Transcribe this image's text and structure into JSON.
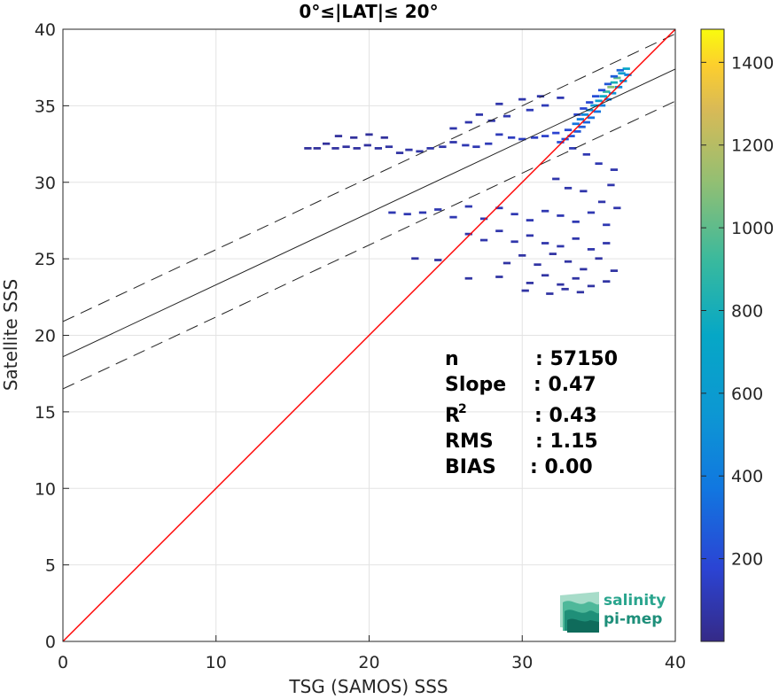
{
  "chart_data": {
    "type": "heatmap",
    "title": "0°≤|LAT|≤ 20°",
    "xlabel": "TSG (SAMOS) SSS",
    "ylabel": "Satellite SSS",
    "xlim": [
      0,
      40
    ],
    "ylim": [
      0,
      40
    ],
    "xticks": [
      "0",
      "10",
      "20",
      "30",
      "40"
    ],
    "yticks": [
      "0",
      "5",
      "10",
      "15",
      "20",
      "25",
      "30",
      "35",
      "40"
    ],
    "grid": true,
    "colorbar": {
      "range": [
        0,
        1480
      ],
      "ticks": [
        "200",
        "400",
        "600",
        "800",
        "1000",
        "1200",
        "1400"
      ]
    },
    "fit_line": {
      "intercept": 18.6,
      "slope": 0.47
    },
    "upper_bound": {
      "intercept": 20.9,
      "slope": 0.47
    },
    "lower_bound": {
      "intercept": 16.5,
      "slope": 0.47
    },
    "identity_line": {
      "color": "#ff0000"
    },
    "stats": [
      {
        "label": "n",
        "value": ": 57150"
      },
      {
        "label": "Slope",
        "value": ": 0.47"
      },
      {
        "label": "R",
        "sup": "2",
        "value": ": 0.43"
      },
      {
        "label": "RMS",
        "value": ": 1.15"
      },
      {
        "label": "BIAS",
        "value": ": 0.00"
      }
    ],
    "density_points": [
      [
        36.8,
        37.4,
        600
      ],
      [
        36.5,
        37.1,
        500
      ],
      [
        36.2,
        36.8,
        900
      ],
      [
        36.0,
        36.5,
        700
      ],
      [
        35.8,
        36.2,
        1000
      ],
      [
        35.5,
        35.9,
        800
      ],
      [
        35.3,
        35.6,
        600
      ],
      [
        35.0,
        35.3,
        500
      ],
      [
        34.7,
        35.0,
        450
      ],
      [
        34.4,
        34.7,
        400
      ],
      [
        34.1,
        34.4,
        350
      ],
      [
        33.8,
        34.1,
        300
      ],
      [
        33.5,
        33.8,
        250
      ],
      [
        36.9,
        37.0,
        300
      ],
      [
        36.6,
        36.6,
        400
      ],
      [
        36.3,
        36.2,
        350
      ],
      [
        35.9,
        35.8,
        400
      ],
      [
        35.6,
        35.4,
        300
      ],
      [
        35.2,
        35.0,
        300
      ],
      [
        34.9,
        34.6,
        250
      ],
      [
        34.5,
        34.2,
        250
      ],
      [
        34.2,
        33.9,
        200
      ],
      [
        33.9,
        33.6,
        180
      ],
      [
        33.6,
        33.3,
        160
      ],
      [
        33.2,
        33.0,
        150
      ],
      [
        32.8,
        32.8,
        140
      ],
      [
        32.5,
        32.6,
        130
      ],
      [
        36.4,
        37.3,
        200
      ],
      [
        36.0,
        36.9,
        180
      ],
      [
        35.6,
        36.4,
        160
      ],
      [
        35.2,
        36.0,
        140
      ],
      [
        34.8,
        35.6,
        130
      ],
      [
        34.4,
        35.2,
        120
      ],
      [
        34.0,
        34.8,
        110
      ],
      [
        33.6,
        34.4,
        100
      ],
      [
        33.0,
        33.4,
        120
      ],
      [
        32.2,
        33.2,
        100
      ],
      [
        31.5,
        33.0,
        90
      ],
      [
        30.8,
        32.9,
        80
      ],
      [
        30.0,
        32.8,
        80
      ],
      [
        29.3,
        32.9,
        70
      ],
      [
        28.5,
        33.1,
        60
      ],
      [
        27.8,
        32.5,
        60
      ],
      [
        27.0,
        32.3,
        50
      ],
      [
        26.3,
        32.4,
        50
      ],
      [
        25.5,
        32.6,
        40
      ],
      [
        24.8,
        32.3,
        40
      ],
      [
        24.0,
        32.2,
        40
      ],
      [
        23.3,
        32.0,
        35
      ],
      [
        22.6,
        32.1,
        35
      ],
      [
        22.0,
        31.9,
        30
      ],
      [
        21.3,
        32.3,
        30
      ],
      [
        20.6,
        32.2,
        30
      ],
      [
        19.9,
        32.4,
        25
      ],
      [
        19.2,
        32.2,
        25
      ],
      [
        18.5,
        32.3,
        25
      ],
      [
        17.8,
        32.2,
        25
      ],
      [
        17.2,
        32.5,
        20
      ],
      [
        16.6,
        32.2,
        20
      ],
      [
        16.0,
        32.2,
        20
      ],
      [
        18.0,
        33.0,
        20
      ],
      [
        19.0,
        32.9,
        20
      ],
      [
        20.0,
        33.1,
        20
      ],
      [
        21.0,
        32.9,
        20
      ],
      [
        25.5,
        33.5,
        40
      ],
      [
        26.5,
        33.9,
        40
      ],
      [
        27.2,
        34.4,
        40
      ],
      [
        28.0,
        34.0,
        40
      ],
      [
        29.0,
        34.3,
        50
      ],
      [
        30.5,
        34.7,
        60
      ],
      [
        31.5,
        35.0,
        60
      ],
      [
        28.5,
        35.1,
        40
      ],
      [
        30.0,
        35.4,
        40
      ],
      [
        31.2,
        35.6,
        40
      ],
      [
        32.5,
        35.5,
        50
      ],
      [
        33.3,
        32.2,
        60
      ],
      [
        34.2,
        31.8,
        50
      ],
      [
        35.0,
        31.2,
        50
      ],
      [
        36.0,
        30.8,
        40
      ],
      [
        35.8,
        29.8,
        40
      ],
      [
        32.2,
        30.2,
        40
      ],
      [
        33.0,
        29.6,
        40
      ],
      [
        34.0,
        29.4,
        40
      ],
      [
        35.2,
        28.7,
        40
      ],
      [
        36.2,
        28.3,
        40
      ],
      [
        21.5,
        28.0,
        50
      ],
      [
        22.5,
        27.9,
        50
      ],
      [
        23.5,
        28.0,
        50
      ],
      [
        24.5,
        28.2,
        50
      ],
      [
        25.5,
        27.7,
        50
      ],
      [
        26.5,
        28.4,
        50
      ],
      [
        27.5,
        27.6,
        50
      ],
      [
        28.5,
        28.3,
        50
      ],
      [
        29.5,
        27.9,
        50
      ],
      [
        30.5,
        27.5,
        50
      ],
      [
        31.5,
        28.1,
        50
      ],
      [
        32.5,
        27.8,
        50
      ],
      [
        33.5,
        27.4,
        50
      ],
      [
        34.5,
        28.0,
        50
      ],
      [
        35.5,
        27.2,
        50
      ],
      [
        26.5,
        26.6,
        40
      ],
      [
        27.5,
        26.2,
        40
      ],
      [
        28.5,
        26.8,
        40
      ],
      [
        29.5,
        26.1,
        40
      ],
      [
        30.5,
        26.5,
        40
      ],
      [
        31.5,
        26.0,
        40
      ],
      [
        32.5,
        25.8,
        40
      ],
      [
        33.5,
        26.3,
        40
      ],
      [
        34.5,
        25.6,
        40
      ],
      [
        35.5,
        26.0,
        40
      ],
      [
        23.0,
        25.0,
        30
      ],
      [
        24.5,
        24.9,
        30
      ],
      [
        29.0,
        24.7,
        30
      ],
      [
        30.0,
        25.2,
        30
      ],
      [
        31.0,
        24.6,
        30
      ],
      [
        32.0,
        25.3,
        30
      ],
      [
        33.0,
        24.8,
        30
      ],
      [
        34.0,
        24.3,
        30
      ],
      [
        35.0,
        25.0,
        30
      ],
      [
        36.0,
        24.2,
        30
      ],
      [
        26.5,
        23.7,
        30
      ],
      [
        28.5,
        23.8,
        30
      ],
      [
        30.5,
        23.4,
        30
      ],
      [
        31.5,
        23.9,
        30
      ],
      [
        32.5,
        23.3,
        30
      ],
      [
        33.5,
        23.7,
        30
      ],
      [
        34.5,
        23.2,
        30
      ],
      [
        35.5,
        23.5,
        30
      ],
      [
        30.2,
        22.9,
        30
      ],
      [
        31.8,
        22.7,
        30
      ],
      [
        32.8,
        23.0,
        30
      ],
      [
        33.8,
        22.8,
        30
      ]
    ]
  },
  "logo": {
    "line1": "salinity",
    "line2": "pi-mep"
  }
}
